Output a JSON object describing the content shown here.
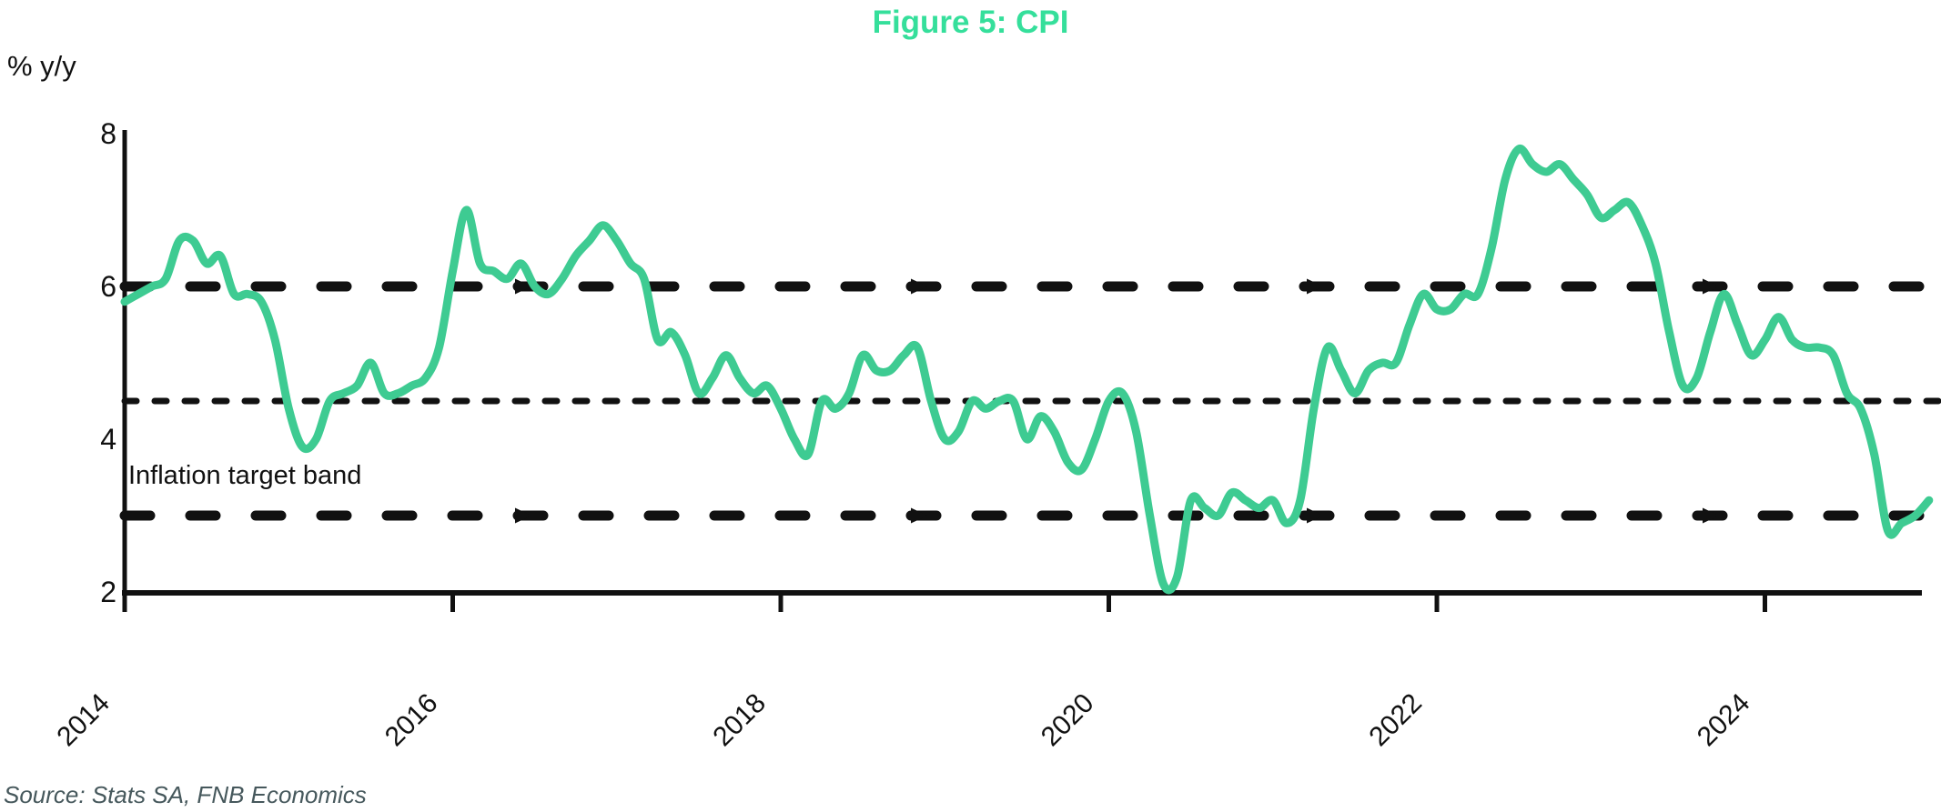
{
  "chart_data": {
    "type": "line",
    "title": "Figure 5: CPI",
    "y_axis_label": "% y/y",
    "annotation": "Inflation target band",
    "source": "Source: Stats SA, FNB Economics",
    "y_ticks": [
      8,
      6,
      4,
      2
    ],
    "x_ticks": [
      2014,
      2016,
      2018,
      2020,
      2022,
      2024
    ],
    "ylim": [
      2,
      8.45
    ],
    "xlim_years": [
      2014.0,
      2024.96
    ],
    "grid": false,
    "legend": "none",
    "reference_lines": [
      {
        "value": 6,
        "weight": "bold-dash"
      },
      {
        "value": 4.5,
        "weight": "fine-dash"
      },
      {
        "value": 3,
        "weight": "bold-dash"
      }
    ],
    "series": [
      {
        "name": "CPI",
        "unit": "% y/y",
        "frequency": "monthly",
        "start": "2014-01",
        "end": "2025-01",
        "values": [
          5.8,
          5.9,
          6.0,
          6.1,
          6.6,
          6.6,
          6.3,
          6.4,
          5.9,
          5.9,
          5.8,
          5.3,
          4.4,
          3.9,
          4.0,
          4.5,
          4.6,
          4.7,
          5.0,
          4.6,
          4.6,
          4.7,
          4.8,
          5.2,
          6.2,
          7.0,
          6.3,
          6.2,
          6.1,
          6.3,
          6.0,
          5.9,
          6.1,
          6.4,
          6.6,
          6.8,
          6.6,
          6.3,
          6.1,
          5.3,
          5.4,
          5.1,
          4.6,
          4.8,
          5.1,
          4.8,
          4.6,
          4.7,
          4.4,
          4.0,
          3.8,
          4.5,
          4.4,
          4.6,
          5.1,
          4.9,
          4.9,
          5.1,
          5.2,
          4.5,
          4.0,
          4.1,
          4.5,
          4.4,
          4.5,
          4.5,
          4.0,
          4.3,
          4.1,
          3.7,
          3.6,
          4.0,
          4.5,
          4.6,
          4.1,
          3.0,
          2.1,
          2.2,
          3.2,
          3.1,
          3.0,
          3.3,
          3.2,
          3.1,
          3.2,
          2.9,
          3.2,
          4.4,
          5.2,
          4.9,
          4.6,
          4.9,
          5.0,
          5.0,
          5.5,
          5.9,
          5.7,
          5.7,
          5.9,
          5.9,
          6.5,
          7.4,
          7.8,
          7.6,
          7.5,
          7.6,
          7.4,
          7.2,
          6.9,
          7.0,
          7.1,
          6.8,
          6.3,
          5.4,
          4.7,
          4.8,
          5.4,
          5.9,
          5.5,
          5.1,
          5.3,
          5.6,
          5.3,
          5.2,
          5.2,
          5.1,
          4.6,
          4.4,
          3.8,
          2.8,
          2.9,
          3.0,
          3.2
        ]
      }
    ]
  },
  "colors": {
    "line_green": "#3ecb92",
    "title_green": "#35df9b",
    "axis_black": "#111111",
    "source_gray": "#46585c"
  }
}
